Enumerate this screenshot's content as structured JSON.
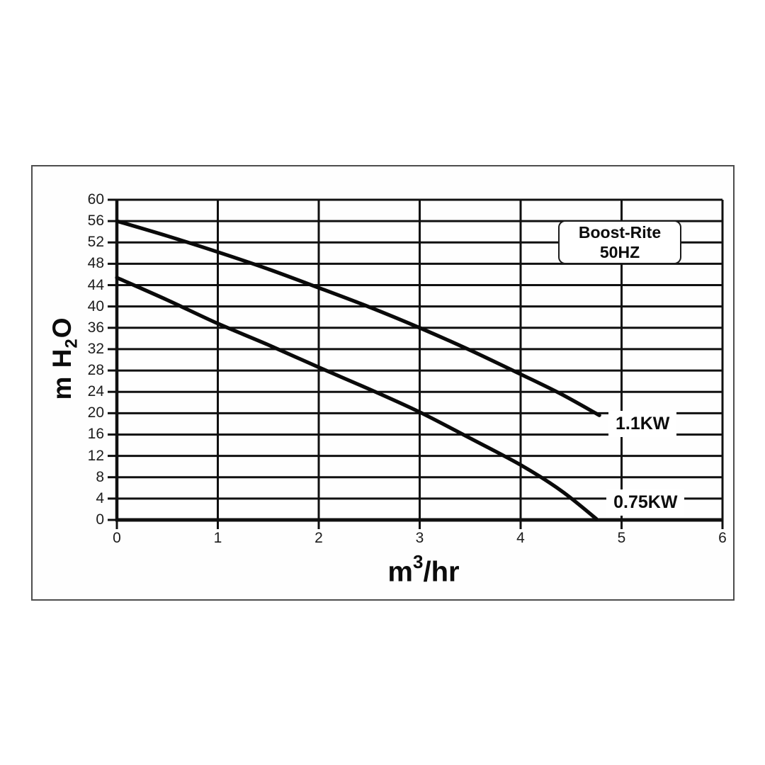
{
  "chart_data": {
    "type": "line",
    "title": "",
    "legend": {
      "lines": [
        "Boost-Rite",
        "50HZ"
      ],
      "position": "top-right-inside"
    },
    "xlabel": "m³/hr",
    "ylabel": "m H₂O",
    "xlabel_parts": {
      "base": "m",
      "sup": "3",
      "rest": "/hr"
    },
    "ylabel_parts": {
      "base": "m H",
      "sub": "2",
      "rest": "O"
    },
    "xlim": [
      0,
      6
    ],
    "ylim": [
      0,
      60
    ],
    "x_ticks": [
      0,
      1,
      2,
      3,
      4,
      5,
      6
    ],
    "y_ticks": [
      0,
      4,
      8,
      12,
      16,
      20,
      24,
      28,
      32,
      36,
      40,
      44,
      48,
      52,
      56,
      60
    ],
    "grid": "both",
    "series": [
      {
        "name": "1.1KW",
        "label": "1.1KW",
        "label_pos": [
          4.87,
          17.6
        ],
        "points": [
          [
            0,
            56
          ],
          [
            0.5,
            53.2
          ],
          [
            1,
            50.2
          ],
          [
            1.5,
            47.0
          ],
          [
            2,
            43.5
          ],
          [
            2.5,
            39.9
          ],
          [
            3,
            36.0
          ],
          [
            3.5,
            31.8
          ],
          [
            4,
            27.3
          ],
          [
            4.4,
            23.6
          ],
          [
            4.78,
            19.6
          ]
        ]
      },
      {
        "name": "0.75KW",
        "label": "0.75KW",
        "label_pos": [
          4.85,
          2.9
        ],
        "points": [
          [
            0,
            45.4
          ],
          [
            0.5,
            41.2
          ],
          [
            1,
            36.8
          ],
          [
            1.5,
            32.8
          ],
          [
            2,
            28.6
          ],
          [
            2.5,
            24.5
          ],
          [
            3,
            20.2
          ],
          [
            3.5,
            15.3
          ],
          [
            4,
            10.3
          ],
          [
            4.4,
            5.5
          ],
          [
            4.75,
            0.2
          ]
        ]
      }
    ],
    "colors": {
      "line": "#0a0a0a",
      "grid": "#101010",
      "axis": "#0a0a0a",
      "text": "#1c1c1c",
      "border": "#4d4d4d",
      "background": "#ffffff"
    }
  }
}
